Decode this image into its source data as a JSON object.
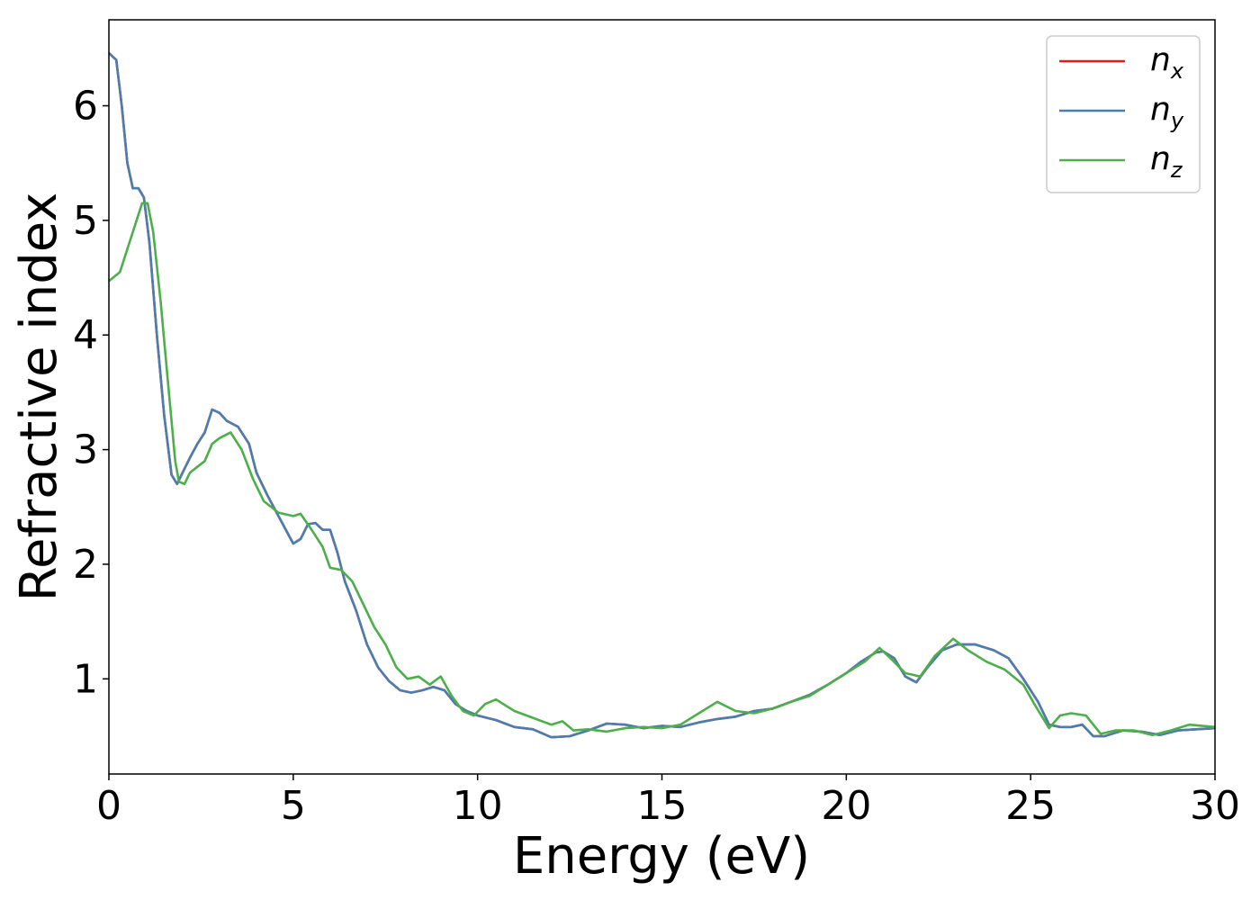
{
  "chart_data": {
    "type": "line",
    "xlabel": "Energy (eV)",
    "ylabel": "Refractive index",
    "xlim": [
      0,
      30
    ],
    "ylim": [
      0.17,
      6.75
    ],
    "xticks": [
      0,
      5,
      10,
      15,
      20,
      25,
      30
    ],
    "yticks": [
      1,
      2,
      3,
      4,
      5,
      6
    ],
    "legend_position": "top-right",
    "grid": false,
    "series": [
      {
        "name": "n_x",
        "label_base": "n",
        "label_sub": "x",
        "color": "#e41a1c",
        "x": [
          0,
          0.2,
          0.35,
          0.5,
          0.65,
          0.8,
          0.95,
          1.1,
          1.3,
          1.5,
          1.7,
          1.85,
          2.0,
          2.2,
          2.4,
          2.6,
          2.8,
          3.0,
          3.2,
          3.5,
          3.8,
          4.0,
          4.3,
          4.6,
          5.0,
          5.2,
          5.4,
          5.6,
          5.8,
          6.0,
          6.2,
          6.4,
          6.7,
          7.0,
          7.3,
          7.6,
          7.9,
          8.2,
          8.5,
          8.8,
          9.1,
          9.4,
          9.7,
          10.0,
          10.5,
          11.0,
          11.5,
          12.0,
          12.5,
          13.0,
          13.5,
          14.0,
          14.5,
          15.0,
          15.5,
          16.0,
          16.5,
          17.0,
          17.5,
          18.0,
          18.5,
          19.0,
          19.5,
          20.0,
          20.4,
          20.8,
          21.0,
          21.3,
          21.6,
          21.9,
          22.2,
          22.6,
          23.0,
          23.5,
          24.0,
          24.4,
          24.8,
          25.2,
          25.5,
          25.8,
          26.1,
          26.4,
          26.7,
          27.0,
          27.5,
          28.0,
          28.5,
          29.0,
          29.5,
          30.0
        ],
        "y": [
          6.46,
          6.4,
          6.0,
          5.5,
          5.28,
          5.28,
          5.2,
          4.8,
          4.0,
          3.3,
          2.78,
          2.7,
          2.8,
          2.93,
          3.05,
          3.15,
          3.35,
          3.32,
          3.25,
          3.2,
          3.05,
          2.8,
          2.6,
          2.42,
          2.18,
          2.22,
          2.35,
          2.36,
          2.3,
          2.3,
          2.1,
          1.85,
          1.6,
          1.3,
          1.1,
          0.98,
          0.9,
          0.88,
          0.9,
          0.93,
          0.9,
          0.78,
          0.72,
          0.68,
          0.64,
          0.58,
          0.56,
          0.49,
          0.5,
          0.55,
          0.61,
          0.6,
          0.57,
          0.59,
          0.58,
          0.62,
          0.65,
          0.67,
          0.72,
          0.74,
          0.8,
          0.86,
          0.95,
          1.05,
          1.15,
          1.23,
          1.24,
          1.18,
          1.02,
          0.97,
          1.1,
          1.25,
          1.3,
          1.3,
          1.25,
          1.18,
          1.0,
          0.8,
          0.6,
          0.58,
          0.58,
          0.6,
          0.5,
          0.5,
          0.55,
          0.54,
          0.51,
          0.55,
          0.56,
          0.57
        ]
      },
      {
        "name": "n_y",
        "label_base": "n",
        "label_sub": "y",
        "color": "#4a7eb0",
        "x": [
          0,
          0.2,
          0.35,
          0.5,
          0.65,
          0.8,
          0.95,
          1.1,
          1.3,
          1.5,
          1.7,
          1.85,
          2.0,
          2.2,
          2.4,
          2.6,
          2.8,
          3.0,
          3.2,
          3.5,
          3.8,
          4.0,
          4.3,
          4.6,
          5.0,
          5.2,
          5.4,
          5.6,
          5.8,
          6.0,
          6.2,
          6.4,
          6.7,
          7.0,
          7.3,
          7.6,
          7.9,
          8.2,
          8.5,
          8.8,
          9.1,
          9.4,
          9.7,
          10.0,
          10.5,
          11.0,
          11.5,
          12.0,
          12.5,
          13.0,
          13.5,
          14.0,
          14.5,
          15.0,
          15.5,
          16.0,
          16.5,
          17.0,
          17.5,
          18.0,
          18.5,
          19.0,
          19.5,
          20.0,
          20.4,
          20.8,
          21.0,
          21.3,
          21.6,
          21.9,
          22.2,
          22.6,
          23.0,
          23.5,
          24.0,
          24.4,
          24.8,
          25.2,
          25.5,
          25.8,
          26.1,
          26.4,
          26.7,
          27.0,
          27.5,
          28.0,
          28.5,
          29.0,
          29.5,
          30.0
        ],
        "y": [
          6.46,
          6.4,
          6.0,
          5.5,
          5.28,
          5.28,
          5.2,
          4.8,
          4.0,
          3.3,
          2.78,
          2.7,
          2.8,
          2.93,
          3.05,
          3.15,
          3.35,
          3.32,
          3.25,
          3.2,
          3.05,
          2.8,
          2.6,
          2.42,
          2.18,
          2.22,
          2.35,
          2.36,
          2.3,
          2.3,
          2.1,
          1.85,
          1.6,
          1.3,
          1.1,
          0.98,
          0.9,
          0.88,
          0.9,
          0.93,
          0.9,
          0.78,
          0.72,
          0.68,
          0.64,
          0.58,
          0.56,
          0.49,
          0.5,
          0.55,
          0.61,
          0.6,
          0.57,
          0.59,
          0.58,
          0.62,
          0.65,
          0.67,
          0.72,
          0.74,
          0.8,
          0.86,
          0.95,
          1.05,
          1.15,
          1.23,
          1.24,
          1.18,
          1.02,
          0.97,
          1.1,
          1.25,
          1.3,
          1.3,
          1.25,
          1.18,
          1.0,
          0.8,
          0.6,
          0.58,
          0.58,
          0.6,
          0.5,
          0.5,
          0.55,
          0.54,
          0.51,
          0.55,
          0.56,
          0.57
        ]
      },
      {
        "name": "n_z",
        "label_base": "n",
        "label_sub": "z",
        "color": "#4daf4a",
        "x": [
          0,
          0.3,
          0.6,
          0.9,
          1.05,
          1.2,
          1.4,
          1.6,
          1.8,
          1.9,
          2.05,
          2.2,
          2.4,
          2.6,
          2.8,
          3.0,
          3.3,
          3.6,
          3.9,
          4.2,
          4.6,
          5.0,
          5.2,
          5.5,
          5.8,
          6.0,
          6.3,
          6.6,
          6.9,
          7.2,
          7.5,
          7.8,
          8.1,
          8.4,
          8.7,
          9.0,
          9.3,
          9.6,
          9.9,
          10.2,
          10.5,
          11.0,
          11.5,
          12.0,
          12.3,
          12.6,
          13.0,
          13.5,
          14.0,
          14.5,
          15.0,
          15.5,
          16.0,
          16.5,
          17.0,
          17.5,
          18.0,
          18.5,
          19.0,
          19.5,
          20.0,
          20.5,
          20.9,
          21.2,
          21.6,
          22.0,
          22.4,
          22.9,
          23.3,
          23.8,
          24.3,
          24.8,
          25.1,
          25.5,
          25.8,
          26.1,
          26.5,
          26.9,
          27.3,
          27.8,
          28.3,
          28.8,
          29.3,
          30.0
        ],
        "y": [
          4.47,
          4.55,
          4.85,
          5.15,
          5.15,
          4.9,
          4.3,
          3.6,
          2.9,
          2.72,
          2.7,
          2.8,
          2.85,
          2.9,
          3.05,
          3.1,
          3.15,
          3.0,
          2.75,
          2.55,
          2.45,
          2.42,
          2.44,
          2.3,
          2.15,
          1.97,
          1.95,
          1.85,
          1.65,
          1.45,
          1.3,
          1.1,
          1.0,
          1.02,
          0.95,
          1.02,
          0.85,
          0.72,
          0.68,
          0.78,
          0.82,
          0.72,
          0.66,
          0.6,
          0.63,
          0.55,
          0.56,
          0.54,
          0.57,
          0.58,
          0.57,
          0.6,
          0.7,
          0.8,
          0.72,
          0.7,
          0.74,
          0.8,
          0.85,
          0.95,
          1.05,
          1.15,
          1.27,
          1.18,
          1.05,
          1.02,
          1.2,
          1.35,
          1.25,
          1.15,
          1.08,
          0.95,
          0.78,
          0.57,
          0.68,
          0.7,
          0.68,
          0.52,
          0.55,
          0.55,
          0.51,
          0.55,
          0.6,
          0.58
        ]
      }
    ]
  }
}
